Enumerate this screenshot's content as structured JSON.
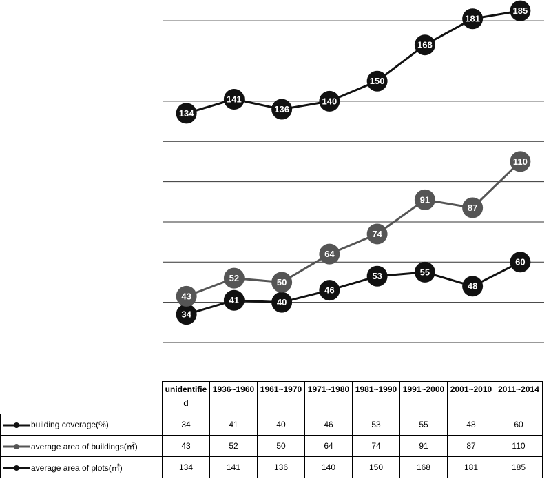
{
  "chart_data": {
    "type": "line",
    "categories": [
      "unidentified",
      "1936~1960",
      "1961~1970",
      "1971~1980",
      "1981~1990",
      "1991~2000",
      "2001~2010",
      "2011~2014"
    ],
    "series": [
      {
        "name": "building coverage(%)",
        "color": "#111111",
        "values": [
          34,
          41,
          40,
          46,
          53,
          55,
          48,
          60
        ]
      },
      {
        "name": "average area of buildings(㎡)",
        "color": "#555555",
        "values": [
          43,
          52,
          50,
          64,
          74,
          91,
          87,
          110
        ]
      },
      {
        "name": "average area of plots(㎡)",
        "color": "#111111",
        "values": [
          134,
          141,
          136,
          140,
          150,
          168,
          181,
          185
        ]
      }
    ],
    "ylim": [
      20,
      190
    ],
    "yticks": [
      20,
      40,
      60,
      80,
      100,
      120,
      140,
      160,
      180
    ],
    "grid": true
  }
}
